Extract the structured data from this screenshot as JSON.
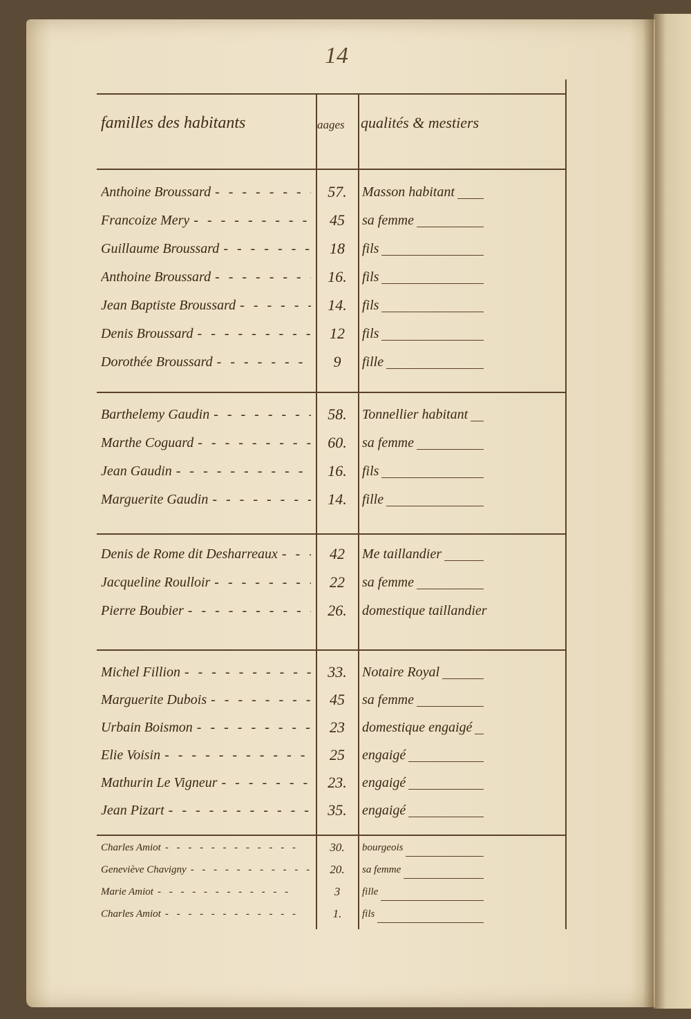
{
  "page_number": "14",
  "header": {
    "col_names": "familles des habitants",
    "col_ages": "aages",
    "col_qualites": "qualités & mestiers"
  },
  "groups": [
    {
      "members": [
        {
          "name": "Anthoine Broussard",
          "age": "57.",
          "qualite": "Masson habitant"
        },
        {
          "name": "Francoize Mery",
          "age": "45",
          "qualite": "sa femme"
        },
        {
          "name": "Guillaume Broussard",
          "age": "18",
          "qualite": "fils"
        },
        {
          "name": "Anthoine Broussard",
          "age": "16.",
          "qualite": "fils"
        },
        {
          "name": "Jean Baptiste Broussard",
          "age": "14.",
          "qualite": "fils"
        },
        {
          "name": "Denis Broussard",
          "age": "12",
          "qualite": "fils"
        },
        {
          "name": "Dorothée Broussard",
          "age": "9",
          "qualite": "fille"
        }
      ]
    },
    {
      "members": [
        {
          "name": "Barthelemy Gaudin",
          "age": "58.",
          "qualite": "Tonnellier habitant"
        },
        {
          "name": "Marthe Coguard",
          "age": "60.",
          "qualite": "sa femme"
        },
        {
          "name": "Jean Gaudin",
          "age": "16.",
          "qualite": "fils"
        },
        {
          "name": "Marguerite Gaudin",
          "age": "14.",
          "qualite": "fille"
        }
      ]
    },
    {
      "members": [
        {
          "name": "Denis de Rome dit Desharreaux",
          "age": "42",
          "qualite": "Me taillandier"
        },
        {
          "name": "Jacqueline Roulloir",
          "age": "22",
          "qualite": "sa femme"
        },
        {
          "name": "Pierre Boubier",
          "age": "26.",
          "qualite": "domestique taillandier"
        }
      ]
    },
    {
      "members": [
        {
          "name": "Michel Fillion",
          "age": "33.",
          "qualite": "Notaire Royal"
        },
        {
          "name": "Marguerite Dubois",
          "age": "45",
          "qualite": "sa femme"
        },
        {
          "name": "Urbain Boismon",
          "age": "23",
          "qualite": "domestique engaigé"
        },
        {
          "name": "Elie Voisin",
          "age": "25",
          "qualite": "engaigé"
        },
        {
          "name": "Mathurin Le Vigneur",
          "age": "23.",
          "qualite": "engaigé"
        },
        {
          "name": "Jean Pizart",
          "age": "35.",
          "qualite": "engaigé"
        }
      ]
    },
    {
      "members": [
        {
          "name": "Charles Amiot",
          "age": "30.",
          "qualite": "bourgeois"
        },
        {
          "name": "Geneviève Chavigny",
          "age": "20.",
          "qualite": "sa femme"
        },
        {
          "name": "Marie Amiot",
          "age": "3",
          "qualite": "fille"
        },
        {
          "name": "Charles Amiot",
          "age": "1.",
          "qualite": "fils"
        }
      ]
    }
  ],
  "colors": {
    "ink": "#3a2614",
    "paper": "#efe4cb",
    "rule": "#5a4028"
  }
}
